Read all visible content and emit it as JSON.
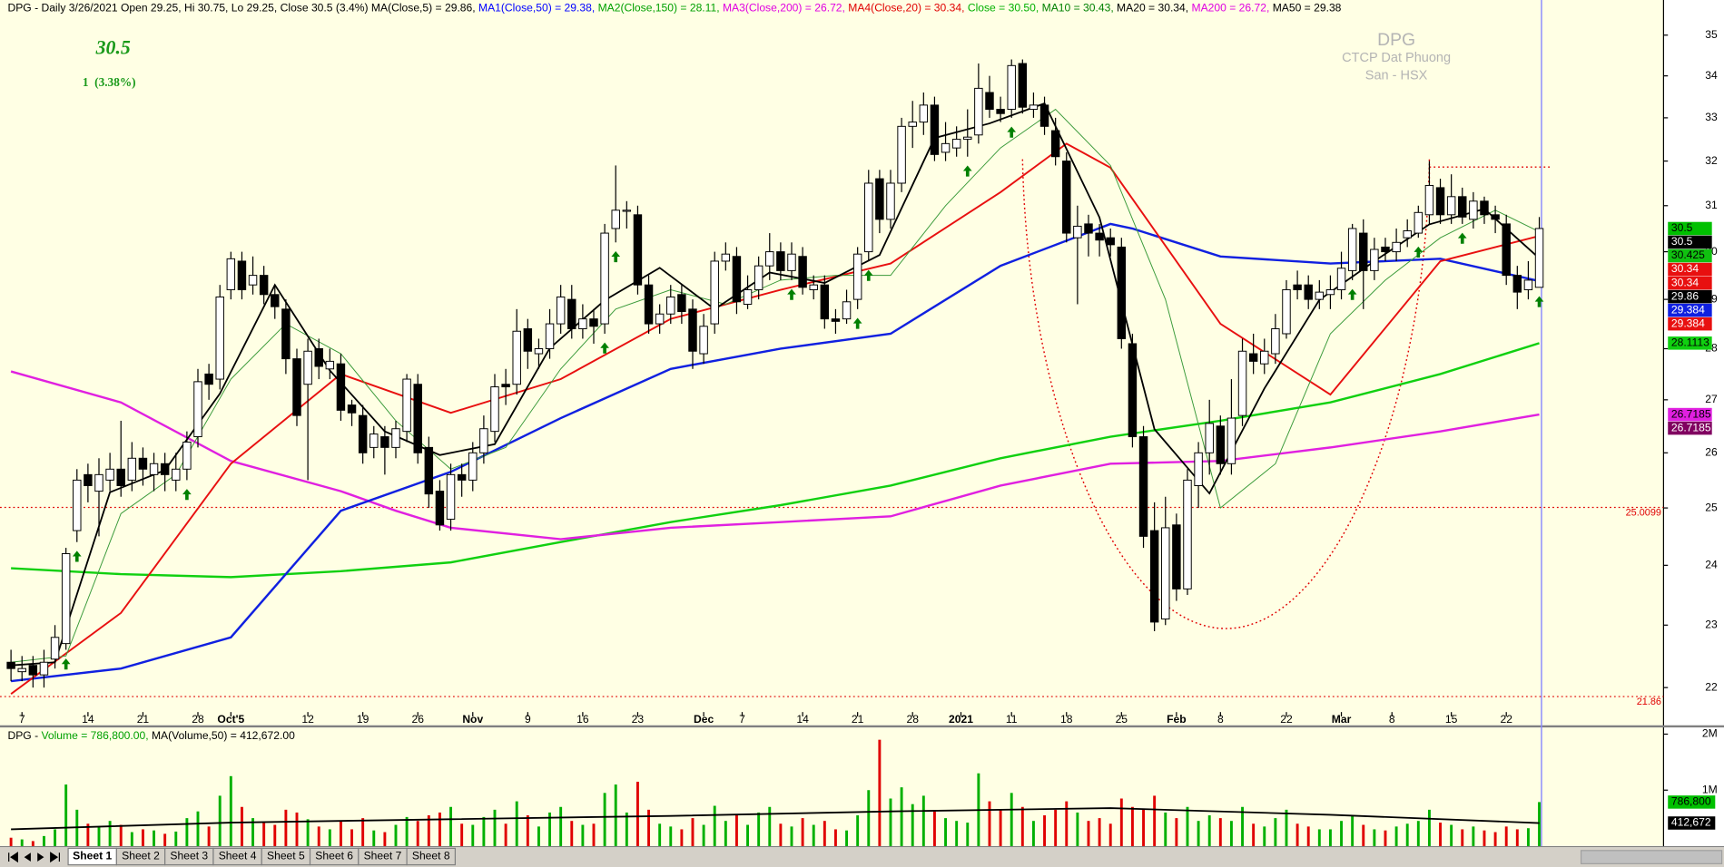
{
  "chart_data": {
    "type": "candlestick",
    "header": [
      {
        "text": "DPG - Daily 3/26/2021 Open 29.25, Hi 30.75, Lo 29.25, Close 30.5 (3.4%) ",
        "color": "#000000"
      },
      {
        "text": "MA(Close,5) = 29.86, ",
        "color": "#000000"
      },
      {
        "text": "MA1(Close,50) = 29.38, ",
        "color": "#0000ff"
      },
      {
        "text": "MA2(Close,150) = 28.11, ",
        "color": "#00a000"
      },
      {
        "text": "MA3(Close,200) = 26.72, ",
        "color": "#e000e0"
      },
      {
        "text": "MA4(Close,20) = 30.34, ",
        "color": "#e00000"
      },
      {
        "text": "Close = 30.50, ",
        "color": "#00b000"
      },
      {
        "text": "MA10 = 30.43, ",
        "color": "#008000"
      },
      {
        "text": "MA20 = 30.34, ",
        "color": "#000000"
      },
      {
        "text": "MA200 = 26.72, ",
        "color": "#e000e0"
      },
      {
        "text": "MA50 = 29.38",
        "color": "#000000"
      }
    ],
    "last_price": 30.5,
    "change_label": "1  (3.38%)",
    "watermark": [
      "DPG",
      "CTCP Dat Phuong",
      "San - HSX"
    ],
    "log_scale": true,
    "grid": false,
    "ylim": [
      21.62,
      35.83
    ],
    "yticks": [
      22,
      23,
      24,
      25,
      26,
      27,
      28,
      29,
      30,
      31,
      32,
      33,
      34,
      35
    ],
    "xticks": [
      {
        "value": 1,
        "label": "7"
      },
      {
        "value": 7,
        "label": "14"
      },
      {
        "value": 12,
        "label": "21"
      },
      {
        "value": 17,
        "label": "28"
      },
      {
        "value": 20,
        "label": "Oct'5"
      },
      {
        "value": 27,
        "label": "12"
      },
      {
        "value": 32,
        "label": "19"
      },
      {
        "value": 37,
        "label": "26"
      },
      {
        "value": 42,
        "label": "Nov"
      },
      {
        "value": 47,
        "label": "9"
      },
      {
        "value": 52,
        "label": "16"
      },
      {
        "value": 57,
        "label": "23"
      },
      {
        "value": 63,
        "label": "Dec"
      },
      {
        "value": 66.5,
        "label": "7"
      },
      {
        "value": 72,
        "label": "14"
      },
      {
        "value": 77,
        "label": "21"
      },
      {
        "value": 82,
        "label": "28"
      },
      {
        "value": 86.4,
        "label": "2021"
      },
      {
        "value": 91,
        "label": "11"
      },
      {
        "value": 96,
        "label": "18"
      },
      {
        "value": 101,
        "label": "25"
      },
      {
        "value": 106,
        "label": "Feb"
      },
      {
        "value": 110,
        "label": "8"
      },
      {
        "value": 116,
        "label": "22"
      },
      {
        "value": 121,
        "label": "Mar"
      },
      {
        "value": 125.6,
        "label": "8"
      },
      {
        "value": 131,
        "label": "15"
      },
      {
        "value": 136,
        "label": "22"
      }
    ],
    "up_color": "#ffffff",
    "down_color": "#000000",
    "open": [
      22.4,
      22.25,
      22.35,
      22.2,
      22.45,
      22.7,
      24.6,
      25.6,
      25.3,
      25.5,
      25.7,
      25.5,
      25.9,
      25.6,
      25.8,
      25.5,
      25.7,
      26.3,
      27.5,
      27.4,
      29.2,
      29.8,
      29.3,
      29.5,
      29.1,
      28.8,
      27.8,
      27.3,
      28.0,
      27.6,
      27.7,
      26.9,
      26.7,
      26.1,
      26.3,
      26.1,
      26.4,
      27.3,
      26.1,
      25.3,
      24.8,
      25.6,
      25.5,
      26.0,
      26.4,
      27.3,
      27.3,
      28.4,
      27.9,
      28.0,
      28.5,
      29.0,
      28.4,
      28.6,
      28.5,
      30.5,
      30.9,
      30.8,
      29.3,
      28.5,
      28.7,
      29.1,
      28.8,
      27.9,
      28.5,
      29.8,
      29.9,
      28.9,
      29.2,
      29.7,
      30.0,
      29.6,
      29.9,
      29.2,
      29.3,
      28.6,
      28.6,
      29.0,
      30.0,
      31.6,
      30.7,
      31.5,
      32.8,
      32.9,
      33.3,
      32.2,
      32.3,
      32.5,
      32.6,
      33.6,
      33.2,
      33.2,
      34.3,
      33.2,
      33.3,
      32.7,
      32.0,
      30.3,
      30.6,
      30.4,
      30.3,
      30.1,
      28.1,
      26.3,
      24.6,
      23.1,
      24.7,
      23.6,
      25.4,
      26.0,
      26.5,
      25.8,
      26.7,
      27.9,
      27.7,
      27.9,
      28.3,
      29.3,
      29.3,
      29.0,
      29.1,
      29.2,
      29.6,
      30.4,
      29.6,
      30.1,
      30.0,
      30.3,
      30.4,
      30.8,
      31.4,
      30.8,
      31.2,
      30.7,
      31.1,
      30.8,
      30.6,
      29.5,
      29.2,
      29.25
    ],
    "high": [
      22.6,
      22.5,
      22.5,
      22.6,
      23.0,
      24.3,
      25.7,
      25.8,
      25.9,
      26.0,
      26.6,
      26.2,
      26.1,
      26.0,
      26.0,
      26.0,
      26.4,
      27.6,
      27.7,
      29.3,
      30.0,
      30.0,
      29.9,
      29.7,
      29.3,
      29.0,
      28.0,
      28.2,
      28.2,
      28.0,
      27.9,
      27.0,
      26.9,
      26.5,
      26.5,
      26.6,
      27.5,
      27.5,
      26.3,
      25.5,
      25.8,
      25.8,
      26.2,
      26.7,
      27.5,
      27.6,
      28.8,
      28.6,
      28.2,
      28.8,
      29.3,
      29.3,
      28.9,
      28.8,
      30.6,
      31.9,
      31.1,
      31.0,
      29.5,
      28.9,
      29.3,
      29.3,
      29.0,
      28.7,
      30.0,
      30.2,
      30.1,
      29.5,
      29.9,
      30.4,
      30.2,
      30.2,
      30.1,
      29.5,
      29.5,
      28.8,
      29.2,
      30.1,
      31.8,
      31.8,
      31.8,
      33.0,
      33.4,
      33.6,
      33.5,
      32.9,
      32.8,
      33.2,
      34.3,
      34.0,
      33.5,
      34.4,
      34.4,
      33.6,
      33.5,
      33.0,
      32.2,
      31.0,
      30.8,
      30.6,
      30.5,
      30.3,
      28.3,
      26.5,
      25.1,
      25.2,
      24.9,
      25.7,
      26.2,
      27.0,
      26.7,
      27.4,
      28.2,
      28.3,
      28.2,
      28.7,
      29.4,
      29.6,
      29.5,
      29.4,
      29.5,
      30.0,
      30.6,
      30.7,
      30.3,
      30.3,
      30.5,
      30.7,
      31.0,
      32.0,
      31.6,
      31.7,
      31.4,
      31.3,
      31.2,
      31.0,
      30.8,
      29.7,
      29.8,
      30.75
    ],
    "low": [
      22.1,
      22.1,
      22.0,
      22.0,
      22.3,
      22.6,
      24.4,
      25.1,
      24.5,
      25.3,
      25.2,
      25.3,
      25.4,
      25.3,
      25.3,
      25.3,
      25.5,
      26.1,
      27.0,
      27.2,
      29.0,
      29.0,
      29.1,
      28.9,
      28.6,
      27.5,
      26.5,
      25.5,
      27.4,
      27.4,
      26.6,
      26.5,
      25.8,
      25.9,
      25.6,
      25.9,
      26.2,
      25.8,
      25.0,
      24.6,
      24.6,
      25.2,
      25.3,
      25.8,
      26.2,
      26.9,
      27.1,
      27.6,
      27.6,
      27.8,
      28.3,
      28.2,
      28.2,
      28.1,
      28.3,
      30.2,
      30.5,
      29.1,
      28.3,
      28.3,
      28.5,
      28.5,
      27.6,
      27.7,
      28.3,
      29.6,
      28.7,
      28.8,
      29.0,
      29.4,
      29.4,
      29.4,
      29.1,
      29.0,
      28.4,
      28.3,
      28.5,
      28.8,
      29.8,
      30.4,
      30.5,
      31.3,
      32.3,
      32.6,
      32.0,
      32.0,
      32.1,
      32.1,
      32.4,
      33.0,
      32.9,
      33.0,
      33.1,
      33.0,
      32.6,
      31.9,
      30.2,
      28.9,
      29.9,
      29.9,
      29.9,
      28.0,
      26.1,
      24.3,
      22.9,
      23.0,
      23.4,
      23.5,
      25.0,
      25.6,
      25.6,
      25.6,
      26.5,
      27.5,
      27.5,
      27.7,
      28.2,
      29.0,
      28.8,
      28.8,
      28.8,
      29.0,
      29.4,
      28.8,
      29.4,
      29.8,
      29.8,
      30.1,
      30.3,
      30.6,
      30.6,
      30.6,
      30.6,
      30.5,
      30.6,
      30.4,
      29.3,
      28.8,
      29.0,
      29.25
    ],
    "close": [
      22.3,
      22.3,
      22.2,
      22.4,
      22.8,
      24.2,
      25.5,
      25.4,
      25.6,
      25.7,
      25.4,
      25.9,
      25.7,
      25.8,
      25.6,
      25.7,
      26.2,
      27.35,
      27.3,
      29.05,
      29.85,
      29.2,
      29.5,
      29.1,
      28.85,
      27.8,
      26.7,
      27.95,
      27.65,
      27.75,
      26.8,
      26.75,
      26.0,
      26.35,
      26.1,
      26.45,
      27.4,
      26.0,
      25.25,
      24.7,
      25.6,
      25.5,
      26.0,
      26.45,
      27.25,
      27.25,
      28.35,
      27.95,
      28.0,
      28.5,
      29.05,
      28.4,
      28.6,
      28.45,
      30.4,
      30.9,
      30.9,
      29.3,
      28.5,
      28.7,
      29.05,
      28.75,
      27.95,
      28.45,
      29.8,
      29.95,
      28.95,
      29.2,
      29.7,
      30.0,
      29.6,
      29.95,
      29.25,
      29.3,
      28.6,
      28.55,
      28.95,
      29.95,
      31.5,
      30.7,
      31.5,
      32.8,
      32.9,
      33.3,
      32.15,
      32.4,
      32.5,
      32.55,
      33.7,
      33.2,
      33.1,
      34.25,
      33.25,
      33.3,
      32.8,
      32.1,
      30.4,
      30.55,
      30.4,
      30.25,
      30.15,
      28.2,
      26.3,
      24.5,
      23.05,
      24.65,
      23.6,
      25.5,
      26.0,
      26.55,
      25.8,
      26.65,
      27.95,
      27.75,
      27.95,
      28.4,
      29.2,
      29.2,
      29.0,
      29.15,
      29.2,
      29.65,
      30.5,
      29.6,
      30.05,
      30.0,
      30.2,
      30.45,
      30.85,
      31.45,
      30.8,
      31.2,
      30.75,
      31.1,
      30.8,
      30.7,
      29.5,
      29.15,
      29.4,
      30.5
    ],
    "ma_lines": [
      {
        "color": "#10d010",
        "width": 2,
        "x": [
          0,
          10,
          20,
          30,
          40,
          50,
          60,
          70,
          80,
          90,
          100,
          110,
          120,
          130,
          139
        ],
        "values": [
          23.95,
          23.85,
          23.8,
          23.9,
          24.05,
          24.4,
          24.75,
          25.05,
          25.4,
          25.9,
          26.3,
          26.6,
          26.95,
          27.5,
          28.11
        ]
      },
      {
        "color": "#e020e0",
        "width": 2,
        "x": [
          0,
          10,
          20,
          30,
          35,
          40,
          50,
          60,
          70,
          80,
          90,
          100,
          110,
          120,
          130,
          139
        ],
        "values": [
          27.55,
          26.95,
          25.85,
          25.3,
          24.95,
          24.65,
          24.45,
          24.65,
          24.75,
          24.85,
          25.4,
          25.8,
          25.85,
          26.1,
          26.4,
          26.72
        ]
      },
      {
        "color": "#1020e0",
        "width": 2,
        "x": [
          0,
          10,
          20,
          30,
          40,
          50,
          60,
          70,
          80,
          90,
          100,
          102,
          110,
          120,
          130,
          139
        ],
        "values": [
          22.1,
          22.3,
          22.8,
          24.95,
          25.65,
          26.65,
          27.6,
          28.0,
          28.3,
          29.7,
          30.6,
          30.5,
          29.9,
          29.75,
          29.85,
          29.38
        ]
      },
      {
        "color": "#e81010",
        "width": 1.6,
        "x": [
          0,
          10,
          20,
          30,
          40,
          50,
          60,
          70,
          80,
          90,
          96,
          100,
          110,
          120,
          130,
          139
        ],
        "values": [
          21.9,
          23.2,
          25.8,
          27.5,
          26.75,
          27.4,
          28.6,
          29.2,
          29.75,
          31.3,
          32.4,
          31.85,
          28.5,
          27.1,
          29.8,
          30.34
        ]
      },
      {
        "color": "#3a9a3a",
        "width": 0.8,
        "x": [
          0,
          5,
          10,
          15,
          20,
          25,
          30,
          35,
          40,
          45,
          50,
          55,
          60,
          65,
          70,
          75,
          80,
          85,
          90,
          95,
          100,
          105,
          110,
          115,
          120,
          125,
          130,
          135,
          139
        ],
        "values": [
          22.4,
          22.5,
          24.9,
          25.6,
          27.4,
          28.5,
          27.9,
          26.6,
          25.7,
          26.1,
          27.6,
          28.8,
          29.2,
          28.9,
          29.4,
          29.5,
          29.5,
          31.0,
          32.3,
          33.2,
          31.9,
          29.0,
          25.0,
          25.8,
          28.3,
          29.4,
          30.3,
          30.9,
          30.43
        ]
      },
      {
        "color": "#000000",
        "width": 1.5,
        "x": [
          0,
          4,
          9,
          14,
          19,
          24,
          29,
          34,
          39,
          44,
          49,
          54,
          59,
          64,
          69,
          74,
          79,
          84,
          89,
          94,
          99,
          104,
          109,
          114,
          119,
          124,
          129,
          134,
          139
        ],
        "values": [
          22.35,
          22.4,
          25.28,
          25.68,
          27.12,
          29.3,
          27.57,
          26.4,
          25.96,
          26.16,
          28.01,
          28.98,
          29.66,
          28.8,
          29.56,
          29.34,
          29.93,
          32.53,
          32.87,
          33.34,
          30.74,
          26.44,
          25.26,
          27.22,
          28.99,
          29.8,
          30.59,
          30.93,
          29.86
        ]
      }
    ],
    "axis_labels": [
      {
        "value": 30.5,
        "color": "#00c000"
      },
      {
        "value": 30.5,
        "color": "#000000"
      },
      {
        "value": 30.425,
        "color": "#10c010"
      },
      {
        "value": 30.34,
        "color": "#e81010"
      },
      {
        "value": 30.34,
        "color": "#e81010"
      },
      {
        "value": 29.86,
        "color": "#000000"
      },
      {
        "value": 29.384,
        "color": "#1020e0"
      },
      {
        "value": 29.384,
        "color": "#e81010"
      },
      {
        "value": 28.1113,
        "color": "#10d010"
      },
      {
        "value": 26.7185,
        "color": "#e020e0"
      },
      {
        "value": 26.7185,
        "color": "#800060"
      },
      {
        "value": 25.0099,
        "color": "#e00000",
        "line": true
      },
      {
        "value": 21.86,
        "color": "#e00000",
        "line": true
      }
    ],
    "signals": [
      5,
      6,
      16,
      54,
      55,
      71,
      77,
      78,
      87,
      91,
      122,
      128,
      132,
      139
    ],
    "signal_color": "#008000",
    "volume": {
      "header": [
        {
          "text": "DPG - ",
          "color": "#000000"
        },
        {
          "text": "Volume = 786,800.00, ",
          "color": "#00a000"
        },
        {
          "text": "MA(Volume,50) = 412,672.00",
          "color": "#000000"
        }
      ],
      "up_color": "#00b000",
      "down_color": "#e00000",
      "ylim": [
        0,
        2100000
      ],
      "yticks": [
        {
          "value": 1000000,
          "label": "1M"
        },
        {
          "value": 2000000,
          "label": "2M"
        }
      ],
      "values": [
        150000,
        120000,
        90000,
        180000,
        300000,
        1100000,
        650000,
        400000,
        350000,
        450000,
        380000,
        250000,
        300000,
        280000,
        220000,
        260000,
        500000,
        620000,
        350000,
        900000,
        1250000,
        700000,
        500000,
        420000,
        380000,
        650000,
        600000,
        480000,
        350000,
        300000,
        450000,
        300000,
        500000,
        280000,
        250000,
        380000,
        520000,
        450000,
        550000,
        600000,
        700000,
        400000,
        380000,
        520000,
        650000,
        400000,
        800000,
        550000,
        350000,
        600000,
        700000,
        450000,
        380000,
        400000,
        950000,
        1100000,
        600000,
        1150000,
        650000,
        400000,
        350000,
        300000,
        500000,
        380000,
        720000,
        450000,
        550000,
        380000,
        600000,
        700000,
        400000,
        350000,
        500000,
        380000,
        450000,
        300000,
        280000,
        550000,
        1000000,
        1900000,
        850000,
        1050000,
        750000,
        900000,
        620000,
        500000,
        450000,
        420000,
        1300000,
        800000,
        650000,
        950000,
        700000,
        450000,
        550000,
        650000,
        800000,
        600000,
        450000,
        500000,
        400000,
        850000,
        700000,
        650000,
        900000,
        600000,
        500000,
        700000,
        450000,
        550000,
        500000,
        450000,
        700000,
        400000,
        350000,
        500000,
        650000,
        400000,
        350000,
        300000,
        300000,
        450000,
        550000,
        380000,
        300000,
        280000,
        350000,
        400000,
        450000,
        650000,
        420000,
        380000,
        300000,
        350000,
        280000,
        250000,
        350000,
        300000,
        320000,
        786800
      ],
      "ma": {
        "color": "#000000",
        "x": [
          0,
          20,
          40,
          60,
          80,
          100,
          120,
          139
        ],
        "values": [
          300000,
          420000,
          480000,
          540000,
          620000,
          680000,
          560000,
          412672
        ]
      },
      "axis_labels": [
        {
          "value": 786800,
          "label": "786,800",
          "color": "#00c000"
        },
        {
          "value": 412672,
          "label": "412,672",
          "color": "#000000"
        }
      ]
    }
  },
  "sheet_tabs": [
    "Sheet 1",
    "Sheet 2",
    "Sheet 3",
    "Sheet 4",
    "Sheet 5",
    "Sheet 6",
    "Sheet 7",
    "Sheet 8"
  ]
}
